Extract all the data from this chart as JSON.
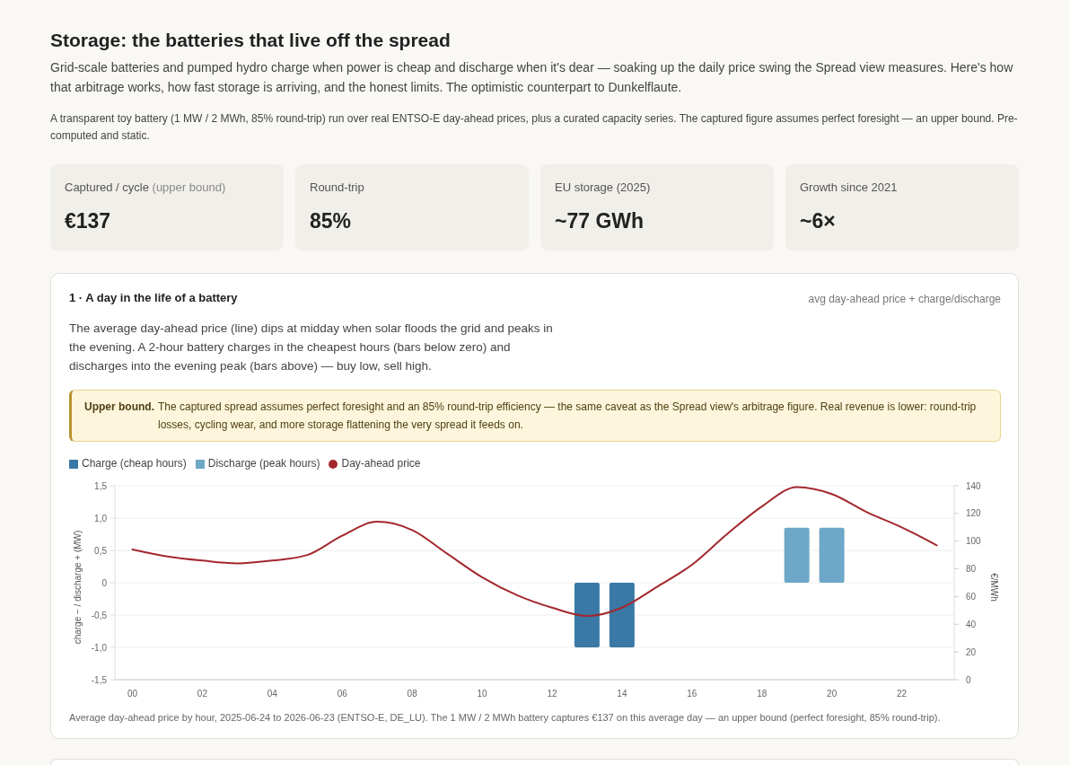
{
  "chart_data": [
    {
      "type": "other",
      "title": "Storage: the batteries that live off the spread",
      "subtitle": "Grid-scale batteries and pumped hydro charge when power is cheap and discharge when it's dear — soaking up the daily price swing the Spread view measures. Here's how that arbitrage works, how fast storage is arriving, and the honest limits. The optimistic counterpart to Dunkelflaute.",
      "annotations": [
        "A transparent toy battery (1 MW / 2 MWh, 85% round-trip) run over real ENTSO-E day-ahead prices, plus a curated capacity series. The captured figure assumes perfect foresight — an upper bound. Pre-computed and static."
      ]
    },
    {
      "type": "other",
      "title": "Captured / cycle",
      "subtitle": "(upper bound)",
      "annotations": [
        "€137"
      ]
    },
    {
      "type": "other",
      "title": "Round-trip",
      "annotations": [
        "85%"
      ]
    },
    {
      "type": "other",
      "title": "EU storage (2025)",
      "annotations": [
        "~77 GWh"
      ]
    },
    {
      "type": "other",
      "title": "Growth since 2021",
      "annotations": [
        "~6×"
      ]
    },
    {
      "type": "bar",
      "title": "1 · A day in the life of a battery",
      "subtitle": "avg day-ahead price + charge/discharge",
      "annotations": [
        "The average day-ahead price (line) dips at midday when solar floods the grid and peaks in the evening. A 2-hour battery charges in the cheapest hours (bars below zero) and discharges into the evening peak (bars above) — buy low, sell high.",
        "Upper bound.",
        "The captured spread assumes perfect foresight and an 85% round-trip efficiency — the same caveat as the Spread view's arbitrage figure. Real revenue is lower: round-trip losses, cycling wear, and more storage flattening the very spread it feeds on.",
        "Average day-ahead price by hour, 2025-06-24 to 2026-06-23 (ENTSO-E, DE_LU). The 1 MW / 2 MWh battery captures €137 on this average day — an upper bound (perfect foresight, 85% round-trip)."
      ],
      "categories": [
        "00",
        null,
        "02",
        null,
        "04",
        null,
        "06",
        null,
        "08",
        null,
        "10",
        null,
        "12",
        null,
        "14",
        null,
        "16",
        null,
        "18",
        null,
        "20",
        null,
        "22",
        null
      ],
      "series": [
        {
          "name": "Charge (cheap hours)",
          "type": "bar",
          "color": "#3a79a5",
          "values": [
            null,
            null,
            null,
            null,
            null,
            null,
            null,
            null,
            null,
            null,
            null,
            null,
            null,
            -1.0,
            -1.0,
            null,
            null,
            null,
            null,
            null,
            null,
            null,
            null,
            null
          ]
        },
        {
          "name": "Discharge (peak hours)",
          "type": "bar",
          "color": "#6ea8c8",
          "values": [
            null,
            null,
            null,
            null,
            null,
            null,
            null,
            null,
            null,
            null,
            null,
            null,
            null,
            null,
            null,
            null,
            null,
            null,
            null,
            0.85,
            0.85,
            null,
            null,
            null
          ]
        },
        {
          "name": "Day-ahead price",
          "type": "line",
          "axis": "y2",
          "color": "#a3282d",
          "values": [
            94,
            89,
            86,
            84,
            86,
            90,
            104,
            114,
            108,
            91,
            74,
            61,
            52,
            46,
            52,
            67,
            83,
            105,
            125,
            139,
            134,
            121,
            110,
            97
          ]
        }
      ],
      "stacked": true,
      "ylabel": "charge − / discharge + (MW)",
      "y2label": "€/MWh",
      "ylim": [
        -1.5,
        1.5
      ],
      "yticks": [
        {
          "value": -1.5,
          "label": "-1,5"
        },
        {
          "value": -1,
          "label": "-1,0"
        },
        {
          "value": -0.5,
          "label": "-0,5"
        },
        0,
        {
          "value": 0.5,
          "label": "0,5"
        },
        {
          "value": 1,
          "label": "1,0"
        },
        {
          "value": 1.5,
          "label": "1,5"
        }
      ],
      "y2lim": [
        0,
        140
      ],
      "y2ticks": [
        0,
        20,
        40,
        60,
        80,
        100,
        120,
        140
      ],
      "grid": "y",
      "legend": "top left"
    }
  ]
}
